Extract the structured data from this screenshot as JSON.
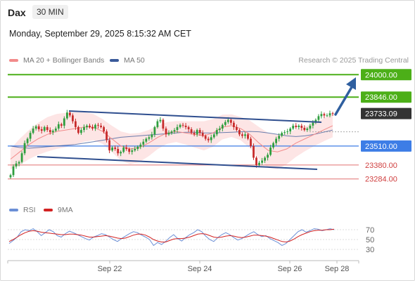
{
  "header": {
    "symbol": "Dax",
    "timeframe": "30 MIN",
    "timestamp": "Monday, September 29, 2025 8:15:32 AM CET"
  },
  "legend": {
    "ma20_label": "MA 20 + Bollinger Bands",
    "ma50_label": "MA 50",
    "credit": "Research © 2025 Trading Central",
    "rsi_label": "RSI",
    "ma9_label": "9MA"
  },
  "colors": {
    "ma20": "#f28b8b",
    "ma50": "#3a5a9a",
    "bollinger_fill": "#fde0e0",
    "resistance": "#4caf18",
    "support": "#3d7de6",
    "pivot_red": "#e07070",
    "current": "#333333",
    "candle_up": "#2e9e3e",
    "candle_down": "#c72b2b",
    "channel": "#2f4f8f",
    "arrow": "#2f5f9f",
    "rsi": "#6b8fd6",
    "rsi_ma": "#d22222"
  },
  "chart_data": [
    {
      "type": "candlestick",
      "title": "",
      "x_ticks": [
        "Sep 22",
        "Sep 24",
        "Sep 26",
        "Sep 28"
      ],
      "ylim": [
        23220,
        24040
      ],
      "price_levels": [
        {
          "label": "24000.00",
          "value": 24000.0,
          "kind": "resistance"
        },
        {
          "label": "23846.00",
          "value": 23846.0,
          "kind": "resistance"
        },
        {
          "label": "23733.09",
          "value": 23733.09,
          "kind": "current"
        },
        {
          "label": "23510.00",
          "value": 23510.0,
          "kind": "pivot"
        },
        {
          "label": "23380.00",
          "value": 23380.0,
          "kind": "support"
        },
        {
          "label": "23284.00",
          "value": 23284.0,
          "kind": "support"
        }
      ],
      "series": [
        {
          "name": "Dax",
          "close": [
            23310,
            23370,
            23390,
            23400,
            23460,
            23530,
            23560,
            23600,
            23630,
            23645,
            23625,
            23615,
            23640,
            23620,
            23605,
            23615,
            23630,
            23660,
            23650,
            23700,
            23740,
            23720,
            23680,
            23640,
            23600,
            23620,
            23640,
            23650,
            23640,
            23630,
            23655,
            23650,
            23640,
            23610,
            23550,
            23480,
            23500,
            23490,
            23460,
            23470,
            23500,
            23490,
            23470,
            23480,
            23490,
            23505,
            23520,
            23540,
            23560,
            23570,
            23590,
            23640,
            23680,
            23690,
            23630,
            23590,
            23600,
            23610,
            23620,
            23640,
            23655,
            23650,
            23640,
            23625,
            23600,
            23590,
            23620,
            23600,
            23580,
            23560,
            23550,
            23570,
            23590,
            23620,
            23630,
            23655,
            23675,
            23690,
            23670,
            23640,
            23620,
            23590,
            23580,
            23590,
            23560,
            23510,
            23430,
            23380,
            23395,
            23410,
            23430,
            23450,
            23500,
            23530,
            23560,
            23580,
            23600,
            23605,
            23610,
            23630,
            23650,
            23640,
            23650,
            23635,
            23620,
            23630,
            23650,
            23670,
            23690,
            23715,
            23730,
            23720,
            23720,
            23735,
            23733
          ]
        },
        {
          "name": "MA 20",
          "values": [
            23420,
            23470,
            23520,
            23560,
            23590,
            23610,
            23620,
            23630,
            23640,
            23640,
            23610,
            23560,
            23510,
            23490,
            23500,
            23530,
            23570,
            23600,
            23610,
            23600,
            23590,
            23580,
            23600,
            23640,
            23650,
            23630,
            23590,
            23530,
            23480,
            23470,
            23490,
            23530,
            23560,
            23590,
            23620,
            23650
          ]
        },
        {
          "name": "MA 50",
          "values": [
            23510,
            23500,
            23495,
            23500,
            23505,
            23510,
            23515,
            23520,
            23530,
            23540,
            23550,
            23560,
            23570,
            23575,
            23580,
            23585,
            23590,
            23595,
            23600,
            23605,
            23605,
            23600,
            23600,
            23602,
            23605,
            23608,
            23610,
            23608,
            23600,
            23590,
            23580,
            23575,
            23580,
            23590,
            23605,
            23620
          ]
        }
      ]
    },
    {
      "type": "line",
      "title": "",
      "y_ticks": [
        "70",
        "50",
        "30"
      ],
      "ylim": [
        20,
        80
      ],
      "series": [
        {
          "name": "RSI",
          "values": [
            42,
            48,
            55,
            66,
            70,
            68,
            72,
            66,
            58,
            64,
            70,
            66,
            58,
            55,
            62,
            67,
            64,
            60,
            56,
            52,
            49,
            55,
            58,
            62,
            60,
            55,
            50,
            46,
            52,
            57,
            62,
            66,
            64,
            59,
            55,
            50,
            38,
            44,
            40,
            46,
            54,
            60,
            52,
            47,
            54,
            60,
            64,
            70,
            66,
            57,
            50,
            46,
            54,
            60,
            64,
            60,
            54,
            49,
            52,
            57,
            62,
            66,
            60,
            56,
            58,
            52,
            48,
            44,
            38,
            42,
            50,
            58,
            66,
            70,
            65,
            68,
            72,
            71,
            68,
            70,
            72,
            70
          ]
        },
        {
          "name": "9MA",
          "values": [
            46,
            50,
            55,
            60,
            64,
            67,
            68,
            67,
            65,
            64,
            63,
            62,
            61,
            60,
            60,
            61,
            61,
            60,
            59,
            57,
            55,
            55,
            56,
            57,
            58,
            57,
            55,
            53,
            52,
            53,
            56,
            59,
            61,
            61,
            59,
            55,
            50,
            47,
            45,
            45,
            48,
            51,
            52,
            52,
            53,
            55,
            58,
            61,
            62,
            61,
            58,
            55,
            54,
            55,
            57,
            58,
            57,
            55,
            54,
            55,
            57,
            59,
            59,
            58,
            57,
            55,
            52,
            49,
            46,
            45,
            47,
            51,
            56,
            60,
            63,
            66,
            68,
            69,
            69,
            70,
            70,
            71
          ]
        }
      ]
    }
  ]
}
